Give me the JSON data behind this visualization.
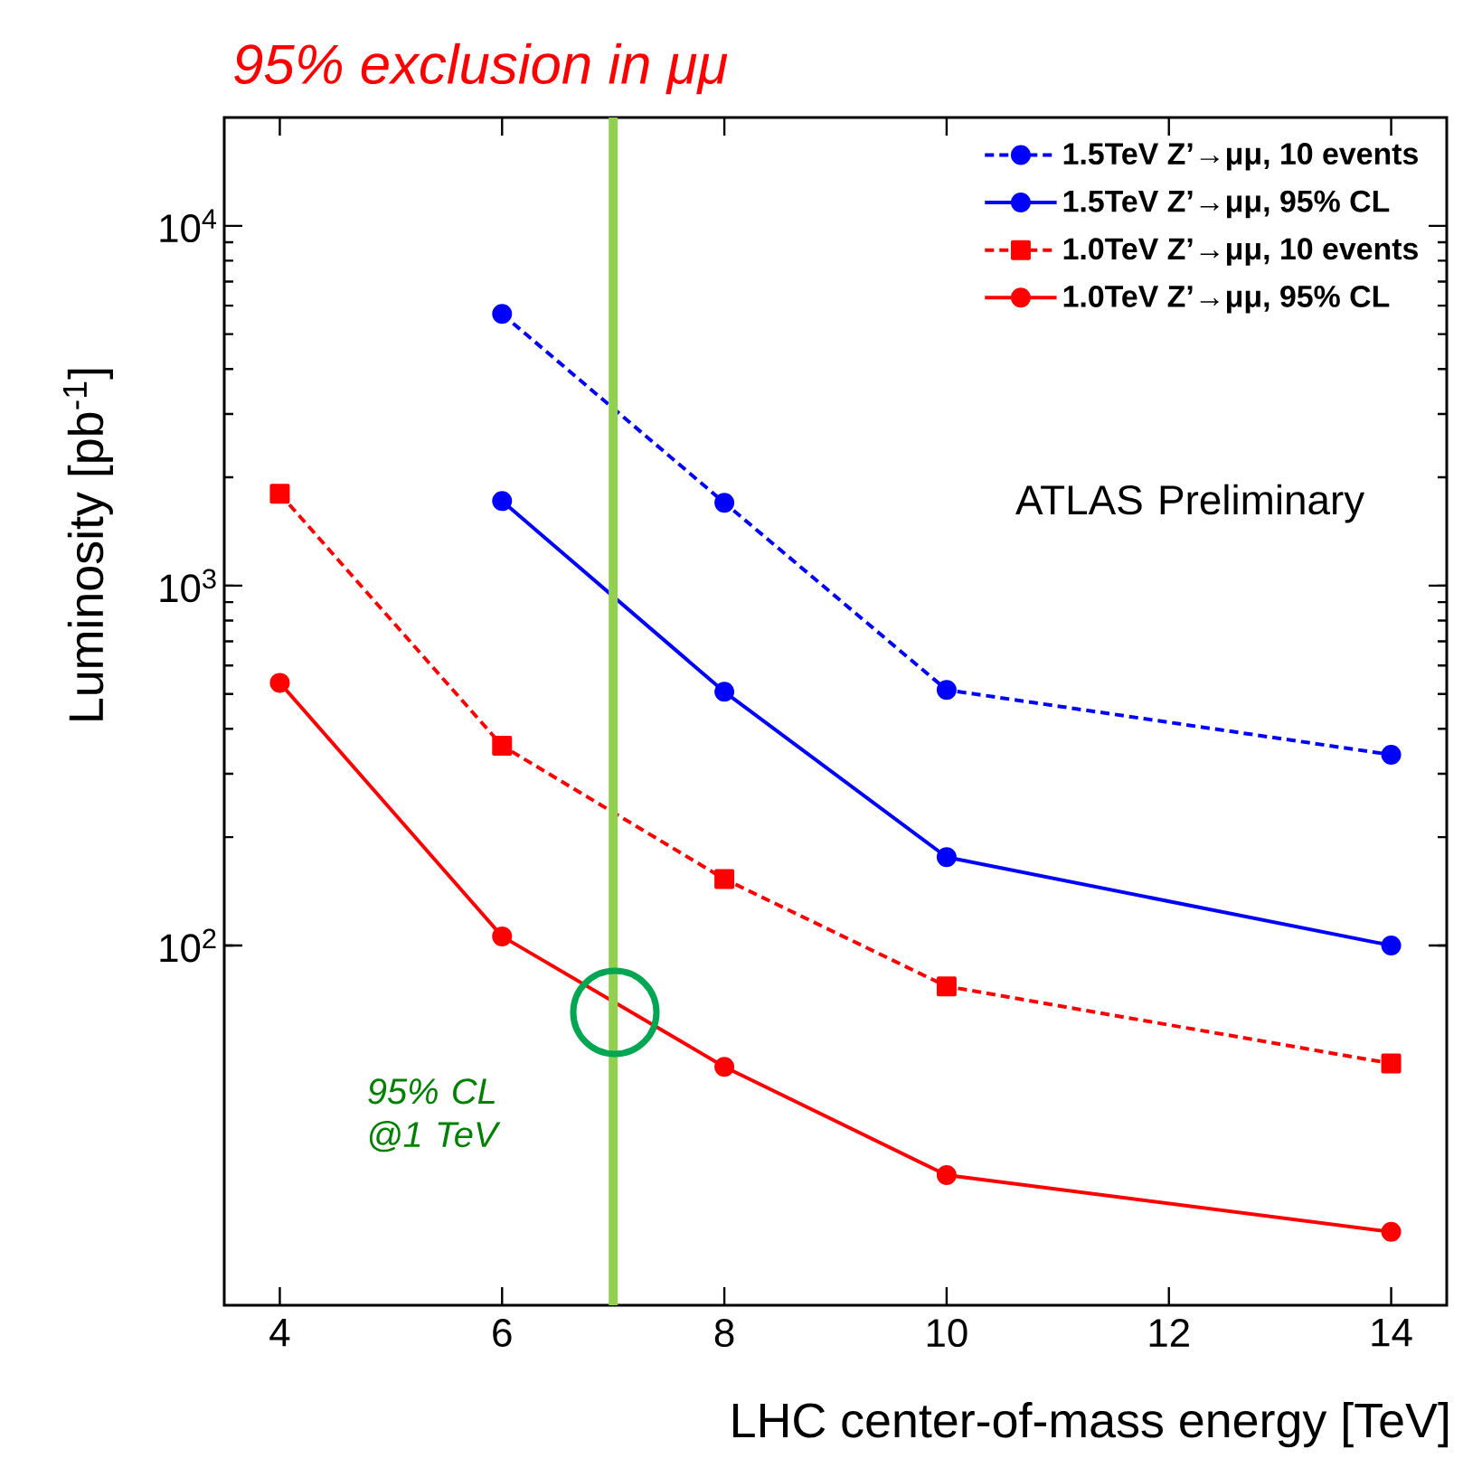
{
  "chart_data": {
    "type": "line",
    "title": "95% exclusion in μμ",
    "xlabel": "LHC center-of-mass energy [TeV]",
    "ylabel": "Luminosity [pb$^{-1}$]",
    "x": [
      4,
      6,
      8,
      10,
      14
    ],
    "xlim": [
      3.5,
      14.5
    ],
    "xticks": [
      4,
      6,
      8,
      10,
      12,
      14
    ],
    "ylim": [
      10,
      20000
    ],
    "yticks": [
      {
        "value": 100,
        "label": "10$^{2}$"
      },
      {
        "value": 1000,
        "label": "10$^{3}$"
      },
      {
        "value": 10000,
        "label": "10$^{4}$"
      }
    ],
    "log": "y",
    "legend": "top right",
    "series": [
      {
        "name": "1.5TeV Z’→μμ, 10 events",
        "color": "#0000ff",
        "marker": "circle",
        "line_style": "dashed",
        "values": [
          null,
          5690,
          1700,
          513,
          339
        ]
      },
      {
        "name": "1.5TeV Z’→μμ, 95% CL",
        "color": "#0000ff",
        "marker": "circle",
        "line_style": "solid",
        "values": [
          null,
          1718,
          507,
          176,
          100
        ]
      },
      {
        "name": "1.0TeV Z’→μμ, 10 events",
        "color": "#ff0000",
        "marker": "square",
        "line_style": "dashed",
        "values": [
          1800,
          359,
          153,
          77,
          47
        ]
      },
      {
        "name": "1.0TeV Z’→μμ, 95% CL",
        "color": "#ff0000",
        "marker": "circle",
        "line_style": "solid",
        "values": [
          537,
          106,
          46,
          23,
          16
        ]
      }
    ],
    "ref_lines": [
      {
        "axis": "x",
        "value": 7,
        "color": "#92d050"
      }
    ],
    "annotations": [
      "ATLAS Preliminary",
      "95% CL @1 TeV"
    ]
  }
}
